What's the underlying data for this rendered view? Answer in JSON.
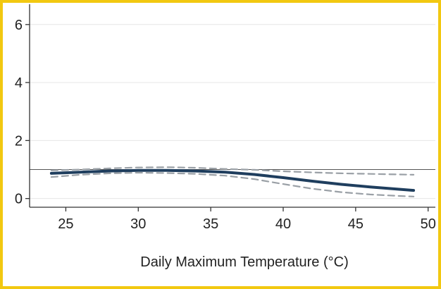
{
  "chart_data": {
    "type": "line",
    "title": "",
    "xlabel": "Daily Maximum Temperature (°C)",
    "ylabel": "",
    "xlim": [
      22.5,
      50.5
    ],
    "ylim": [
      -0.3,
      6.7
    ],
    "xticks": [
      25,
      30,
      35,
      40,
      45,
      50
    ],
    "yticks": [
      0,
      2,
      4,
      6
    ],
    "grid": "horizontal",
    "reference_line": 1,
    "series": [
      {
        "role": "estimate",
        "style": "solid",
        "color": "#1f3e5e",
        "x": [
          24,
          26,
          28,
          30,
          32,
          34,
          36,
          38,
          40,
          42,
          44,
          46,
          48,
          49
        ],
        "y": [
          0.87,
          0.91,
          0.95,
          0.97,
          0.97,
          0.95,
          0.91,
          0.83,
          0.72,
          0.6,
          0.49,
          0.4,
          0.32,
          0.28
        ]
      },
      {
        "role": "upper-ci",
        "style": "dashed",
        "color": "#9aa0a6",
        "x": [
          24,
          26,
          28,
          30,
          32,
          34,
          36,
          38,
          40,
          42,
          44,
          46,
          48,
          49
        ],
        "y": [
          0.97,
          1.0,
          1.04,
          1.07,
          1.08,
          1.06,
          1.02,
          0.99,
          0.94,
          0.9,
          0.87,
          0.85,
          0.83,
          0.82
        ]
      },
      {
        "role": "lower-ci",
        "style": "dashed",
        "color": "#9aa0a6",
        "x": [
          24,
          26,
          28,
          30,
          32,
          34,
          36,
          38,
          40,
          42,
          44,
          46,
          48,
          49
        ],
        "y": [
          0.74,
          0.82,
          0.87,
          0.89,
          0.88,
          0.85,
          0.79,
          0.67,
          0.5,
          0.34,
          0.22,
          0.14,
          0.09,
          0.07
        ]
      }
    ]
  },
  "colors": {
    "frame_border": "#f2c811",
    "axis": "#333333",
    "grid": "#e6e6e6",
    "reference_line": "#555555"
  }
}
